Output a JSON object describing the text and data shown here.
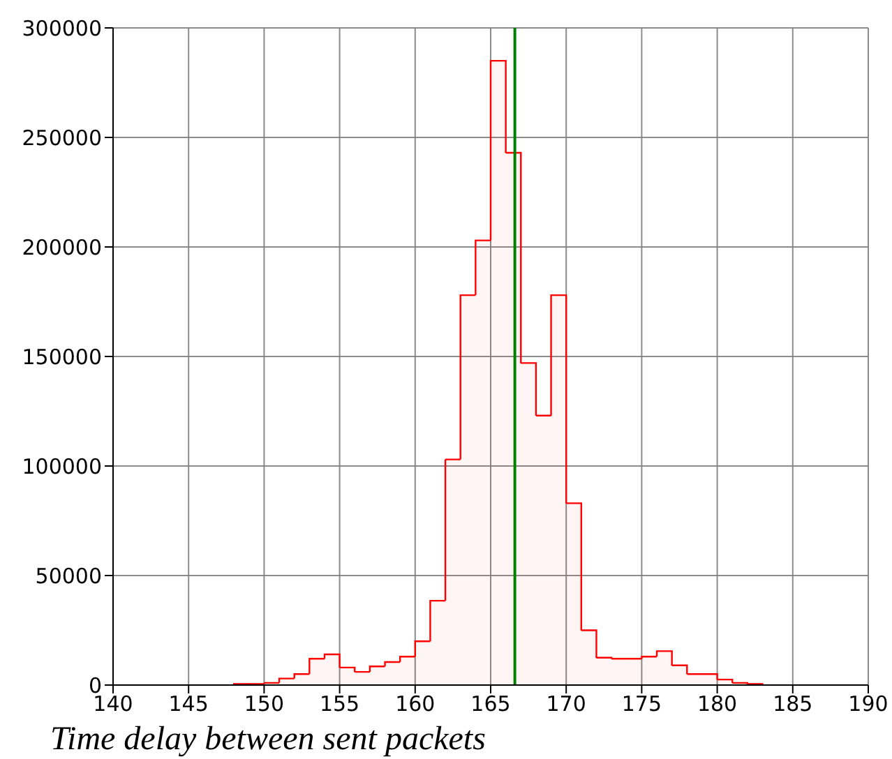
{
  "chart_data": {
    "type": "histogram",
    "xlabel": "Time delay between sent packets",
    "bins": [
      148,
      149,
      150,
      151,
      152,
      153,
      154,
      155,
      156,
      157,
      158,
      159,
      160,
      161,
      162,
      163,
      164,
      165,
      166,
      167,
      168,
      169,
      170,
      171,
      172,
      173,
      174,
      175,
      176,
      177,
      178,
      179,
      180,
      181,
      182,
      183
    ],
    "values": [
      500,
      500,
      1000,
      3000,
      5000,
      12000,
      14000,
      8000,
      6000,
      8500,
      10500,
      13000,
      20000,
      38500,
      103000,
      178000,
      203000,
      285000,
      243000,
      147000,
      123000,
      178000,
      83000,
      25000,
      12500,
      12000,
      12000,
      13000,
      15500,
      9000,
      5000,
      5000,
      2500,
      1000,
      500
    ],
    "color": "#ff0000",
    "xlim": [
      140,
      190
    ],
    "xticks": [
      140,
      145,
      150,
      155,
      160,
      165,
      170,
      175,
      180,
      185,
      190
    ],
    "ylim": [
      0,
      300000
    ],
    "yticks": [
      0,
      50000,
      100000,
      150000,
      200000,
      250000,
      300000
    ],
    "grid": true,
    "ref_lines": [
      {
        "axis": "x",
        "value": 166.6,
        "color": "#008000"
      }
    ]
  }
}
